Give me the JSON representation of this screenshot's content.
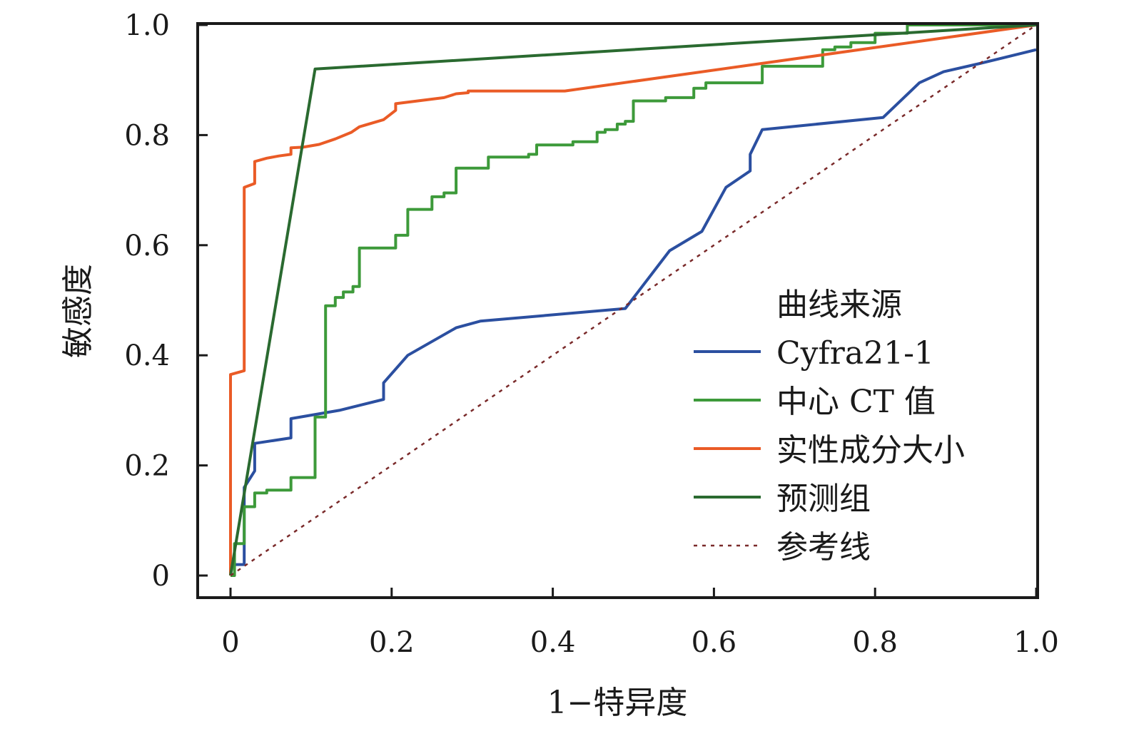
{
  "chart_data": {
    "type": "line",
    "title": "",
    "xlabel": "1−特异度",
    "ylabel": "敏感度",
    "xlim": [
      0,
      1
    ],
    "ylim": [
      0,
      1
    ],
    "x_ticks": [
      "0",
      "0.2",
      "0.4",
      "0.6",
      "0.8",
      "1.0"
    ],
    "y_ticks": [
      "0",
      "0.2",
      "0.4",
      "0.6",
      "0.8",
      "1.0"
    ],
    "grid": false,
    "legend": {
      "title": "曲线来源",
      "position": "bottom-right"
    },
    "series": [
      {
        "name": "Cyfra21-1",
        "color": "#2b4fa0",
        "style": "solid",
        "step": false,
        "points": [
          [
            0,
            0
          ],
          [
            0,
            0.02
          ],
          [
            0.017,
            0.02
          ],
          [
            0.017,
            0.16
          ],
          [
            0.03,
            0.19
          ],
          [
            0.03,
            0.24
          ],
          [
            0.075,
            0.25
          ],
          [
            0.075,
            0.285
          ],
          [
            0.135,
            0.3
          ],
          [
            0.19,
            0.32
          ],
          [
            0.19,
            0.35
          ],
          [
            0.22,
            0.4
          ],
          [
            0.28,
            0.45
          ],
          [
            0.31,
            0.462
          ],
          [
            0.49,
            0.485
          ],
          [
            0.545,
            0.59
          ],
          [
            0.585,
            0.625
          ],
          [
            0.615,
            0.705
          ],
          [
            0.645,
            0.735
          ],
          [
            0.645,
            0.765
          ],
          [
            0.66,
            0.81
          ],
          [
            0.81,
            0.832
          ],
          [
            0.855,
            0.895
          ],
          [
            0.885,
            0.915
          ],
          [
            0.93,
            0.93
          ],
          [
            1.0,
            0.955
          ]
        ]
      },
      {
        "name": "中心 CT 值",
        "color": "#3d9a3a",
        "step": true,
        "style": "solid",
        "points": [
          [
            0,
            0
          ],
          [
            0.005,
            0.058
          ],
          [
            0.017,
            0.125
          ],
          [
            0.03,
            0.15
          ],
          [
            0.045,
            0.155
          ],
          [
            0.075,
            0.178
          ],
          [
            0.105,
            0.19
          ],
          [
            0.105,
            0.288
          ],
          [
            0.118,
            0.49
          ],
          [
            0.13,
            0.505
          ],
          [
            0.14,
            0.515
          ],
          [
            0.152,
            0.525
          ],
          [
            0.16,
            0.595
          ],
          [
            0.205,
            0.618
          ],
          [
            0.22,
            0.665
          ],
          [
            0.25,
            0.688
          ],
          [
            0.265,
            0.695
          ],
          [
            0.28,
            0.74
          ],
          [
            0.32,
            0.76
          ],
          [
            0.37,
            0.765
          ],
          [
            0.38,
            0.782
          ],
          [
            0.425,
            0.788
          ],
          [
            0.455,
            0.805
          ],
          [
            0.465,
            0.81
          ],
          [
            0.48,
            0.82
          ],
          [
            0.49,
            0.825
          ],
          [
            0.5,
            0.862
          ],
          [
            0.54,
            0.868
          ],
          [
            0.575,
            0.885
          ],
          [
            0.59,
            0.895
          ],
          [
            0.66,
            0.925
          ],
          [
            0.735,
            0.955
          ],
          [
            0.75,
            0.96
          ],
          [
            0.77,
            0.968
          ],
          [
            0.8,
            0.985
          ],
          [
            0.84,
            1.0
          ],
          [
            1.0,
            1.0
          ]
        ]
      },
      {
        "name": "实性成分大小",
        "color": "#ea5b26",
        "style": "solid",
        "step": false,
        "points": [
          [
            0,
            0
          ],
          [
            0,
            0.365
          ],
          [
            0.017,
            0.372
          ],
          [
            0.017,
            0.705
          ],
          [
            0.03,
            0.712
          ],
          [
            0.03,
            0.752
          ],
          [
            0.045,
            0.758
          ],
          [
            0.06,
            0.762
          ],
          [
            0.075,
            0.765
          ],
          [
            0.075,
            0.777
          ],
          [
            0.09,
            0.778
          ],
          [
            0.11,
            0.783
          ],
          [
            0.13,
            0.793
          ],
          [
            0.15,
            0.805
          ],
          [
            0.16,
            0.815
          ],
          [
            0.19,
            0.828
          ],
          [
            0.205,
            0.845
          ],
          [
            0.205,
            0.857
          ],
          [
            0.265,
            0.868
          ],
          [
            0.28,
            0.875
          ],
          [
            0.295,
            0.877
          ],
          [
            0.295,
            0.88
          ],
          [
            0.415,
            0.88
          ],
          [
            1.0,
            1.0
          ]
        ]
      },
      {
        "name": "预测组",
        "color": "#2a6a30",
        "style": "solid",
        "step": false,
        "points": [
          [
            0,
            0
          ],
          [
            0.105,
            0.92
          ],
          [
            1.0,
            1.0
          ]
        ]
      },
      {
        "name": "参考线",
        "color": "#7a2a2a",
        "style": "dotted",
        "step": false,
        "points": [
          [
            0,
            0
          ],
          [
            1,
            1
          ]
        ]
      }
    ]
  }
}
